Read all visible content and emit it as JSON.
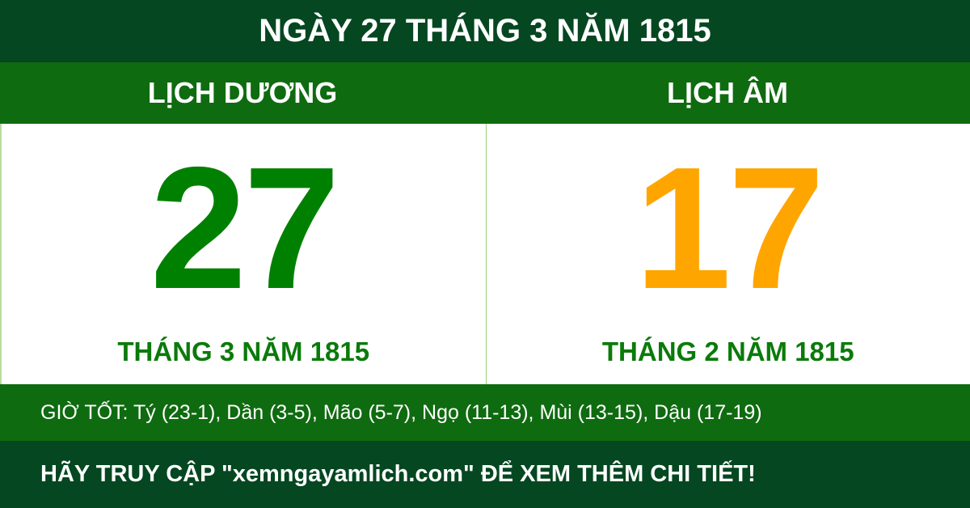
{
  "title": "NGÀY 27 THÁNG 3 NĂM 1815",
  "solar": {
    "label": "LỊCH DƯƠNG",
    "day": "27",
    "month_year": "THÁNG 3 NĂM 1815",
    "color": "#008000"
  },
  "lunar": {
    "label": "LỊCH ÂM",
    "day": "17",
    "month_year": "THÁNG 2 NĂM 1815",
    "color": "#ffa500"
  },
  "good_hours": "GIỜ TỐT: Tý (23-1), Dần (3-5), Mão (5-7), Ngọ (11-13), Mùi (13-15), Dậu (17-19)",
  "footer": "HÃY TRUY CẬP \"xemngayamlich.com\" ĐỂ XEM THÊM CHI TIẾT!"
}
